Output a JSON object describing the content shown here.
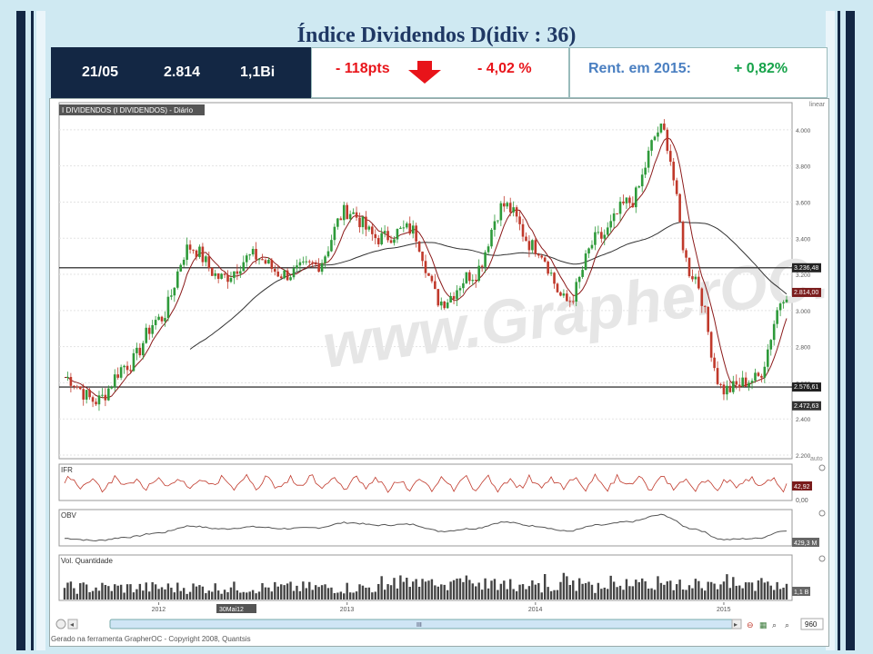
{
  "title": "Índice Dividendos D(idiv : 36)",
  "header": {
    "date": "21/05",
    "points": "2.814",
    "volume": "1,1Bi",
    "change_pts": "- 118pts",
    "change_pct": "- 4,02 %",
    "rent_label": "Rent. em 2015:",
    "rent_value": "+ 0,82%"
  },
  "colors": {
    "navy": "#132744",
    "down_red": "#e8141a",
    "up_green": "#17a34a",
    "rent_blue": "#4a7fc1",
    "candle_up": "#2e9a3a",
    "candle_down": "#c0392b"
  },
  "icons": {
    "change_arrow": "down-arrow-icon"
  },
  "chart": {
    "panel_title": "I DIVIDENDOS (I DIVIDENDOS) - Diário",
    "scale_mode": "linear",
    "watermark": "www.GrapherOC.com",
    "y_ticks": [
      "4.000",
      "3.800",
      "3.600",
      "3.400",
      "3.200",
      "3.000",
      "2.800",
      "2.600",
      "2.400",
      "2.200"
    ],
    "x_ticks": [
      "2012",
      "2013",
      "2014",
      "2015"
    ],
    "cursor_date": "30Mai12",
    "level_labels": {
      "upper": "3.236,48",
      "last": "2.814,00",
      "lower": "2.576,61",
      "min": "2.472,63"
    },
    "ifr_label": "IFR",
    "ifr_value": "42,92",
    "ifr_axis": "0,00",
    "obv_label": "OBV",
    "obv_value": "429,3 M",
    "vol_label": "Vol. Quantidade",
    "vol_value": "1,1 B",
    "auto_label": "auto",
    "zoom_value": "960",
    "scroll_label": "III",
    "footer": "Gerado na ferramenta GrapherOC - Copyright 2008, Quantsis"
  },
  "chart_data": {
    "type": "line",
    "title": "I DIVIDENDOS (I DIVIDENDOS) - Diário",
    "ylim": [
      2200,
      4100
    ],
    "horizontal_levels": [
      3236.48,
      2576.61
    ],
    "x": [
      "2011-07",
      "2011-09",
      "2011-11",
      "2012-01",
      "2012-03",
      "2012-05",
      "2012-07",
      "2012-09",
      "2012-11",
      "2013-01",
      "2013-03",
      "2013-05",
      "2013-07",
      "2013-09",
      "2013-11",
      "2014-01",
      "2014-03",
      "2014-05",
      "2014-07",
      "2014-09",
      "2014-11",
      "2015-01",
      "2015-03",
      "2015-05"
    ],
    "series": [
      {
        "values": [
          2630,
          2500,
          2700,
          2950,
          3350,
          3180,
          3300,
          3200,
          3250,
          3550,
          3400,
          3450,
          3050,
          3200,
          3580,
          3350,
          3050,
          3400,
          3600,
          4000,
          3200,
          2560,
          2620,
          3100
        ]
      }
    ]
  }
}
